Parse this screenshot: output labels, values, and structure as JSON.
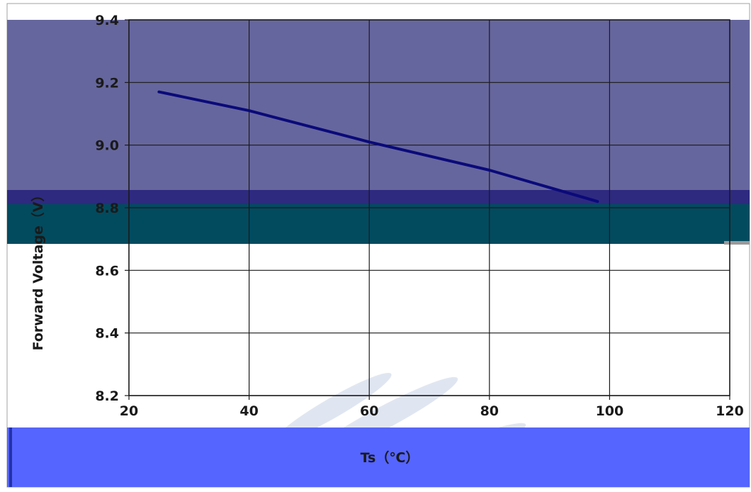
{
  "chart_data": {
    "type": "line",
    "xlabel": "Ts（℃）",
    "ylabel": "Forward Voltage（V）",
    "xlim": [
      20,
      120
    ],
    "ylim": [
      8.2,
      9.4
    ],
    "x_ticks": [
      20,
      40,
      60,
      80,
      100,
      120
    ],
    "y_ticks": [
      8.2,
      8.4,
      8.6,
      8.8,
      9.0,
      9.2,
      9.4
    ],
    "x_tick_labels": [
      "20",
      "40",
      "60",
      "80",
      "100",
      "120"
    ],
    "y_tick_labels": [
      "8.2",
      "8.4",
      "8.6",
      "8.8",
      "9.0",
      "9.2",
      "9.4"
    ],
    "grid": true,
    "series": [
      {
        "x": [
          25,
          40,
          60,
          80,
          98
        ],
        "values": [
          9.17,
          9.11,
          9.01,
          8.92,
          8.82
        ]
      }
    ],
    "colors": {
      "line": "#0a0a7a",
      "grid": "#1a1a1a",
      "band_top": "#66669e",
      "band_dark": "#2e2a80",
      "band_teal": "#024b5f",
      "band_bottom": "#5565ff",
      "watermark": "#c8d2e6"
    }
  }
}
